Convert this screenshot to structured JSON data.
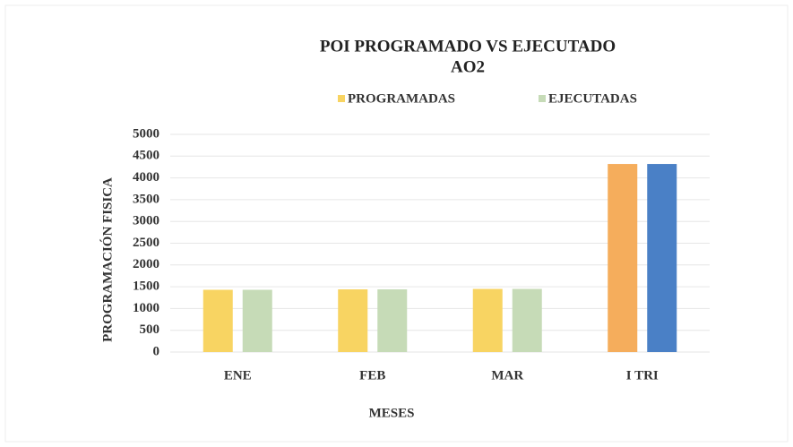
{
  "chart_data": {
    "type": "bar",
    "title": "POI PROGRAMADO VS EJECUTADO",
    "subtitle": "AO2",
    "x_label": "MESES",
    "y_label": "PROGRAMACIÓN FISICA",
    "categories": [
      "ENE",
      "FEB",
      "MAR",
      "I TRI"
    ],
    "series": [
      {
        "name": "PROGRAMADAS",
        "color": "#f8d462",
        "colors": [
          "#f8d462",
          "#f8d462",
          "#f8d462",
          "#f5ad5c"
        ],
        "values": [
          1430,
          1440,
          1450,
          4320
        ]
      },
      {
        "name": "EJECUTADAS",
        "color": "#c6dbb7",
        "colors": [
          "#c6dbb7",
          "#c6dbb7",
          "#c6dbb7",
          "#4a80c6"
        ],
        "values": [
          1430,
          1440,
          1450,
          4320
        ]
      }
    ],
    "ylim": [
      0,
      5000
    ],
    "yticks": [
      0,
      500,
      1000,
      1500,
      2000,
      2500,
      3000,
      3500,
      4000,
      4500,
      5000
    ],
    "grid": true,
    "legend": "top"
  }
}
